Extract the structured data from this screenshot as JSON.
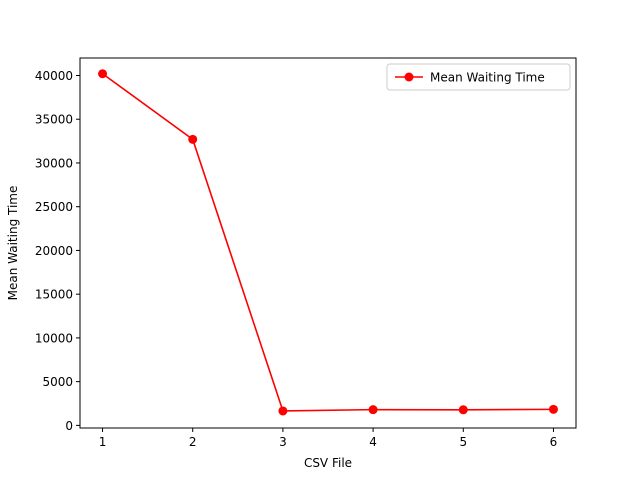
{
  "chart_data": {
    "type": "line",
    "title": "",
    "xlabel": "CSV File",
    "ylabel": "Mean Waiting Time",
    "x": [
      1,
      2,
      3,
      4,
      5,
      6
    ],
    "xticks": [
      1,
      2,
      3,
      4,
      5,
      6
    ],
    "xlim": [
      0.75,
      6.25
    ],
    "yticks": [
      0,
      5000,
      10000,
      15000,
      20000,
      25000,
      30000,
      35000,
      40000
    ],
    "ylim": [
      -300,
      42000
    ],
    "grid": false,
    "legend_position": "top-right",
    "series": [
      {
        "name": "Mean Waiting Time",
        "color": "#ff0000",
        "marker": "circle",
        "values": [
          40200,
          32700,
          1650,
          1800,
          1780,
          1830
        ]
      }
    ]
  }
}
